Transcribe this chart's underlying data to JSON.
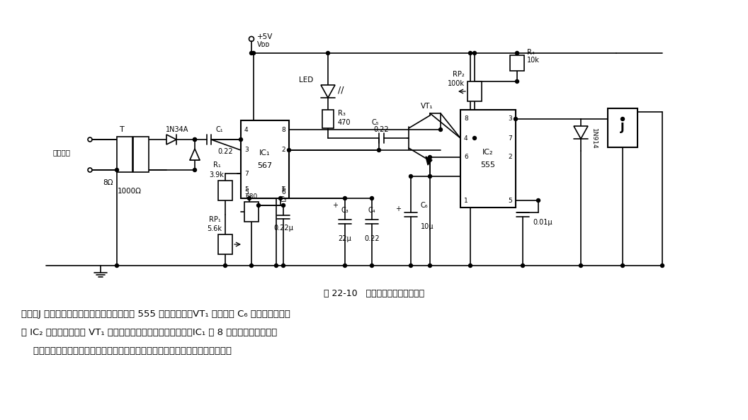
{
  "fig_width": 10.56,
  "fig_height": 5.93,
  "bg": "#ffffff",
  "lc": "#000000",
  "title": "图 22-10   载波信号处理、控制电路",
  "line1": "置位，J 吸合，将负载的电源接通或断开。在 555 置位的同时，VT₁ 导通，将 C₆ 上原有的电荷通",
  "line2": "过 IC₂ 内部的放电管和 VT₁ 放电，并保持。音频信号结束后，IC₁ 的 8 脉自动回至高电平。",
  "line3": "    本译码、控制电路用于多种控制场合，如通控、遥测、工业控制、电话通信等。"
}
